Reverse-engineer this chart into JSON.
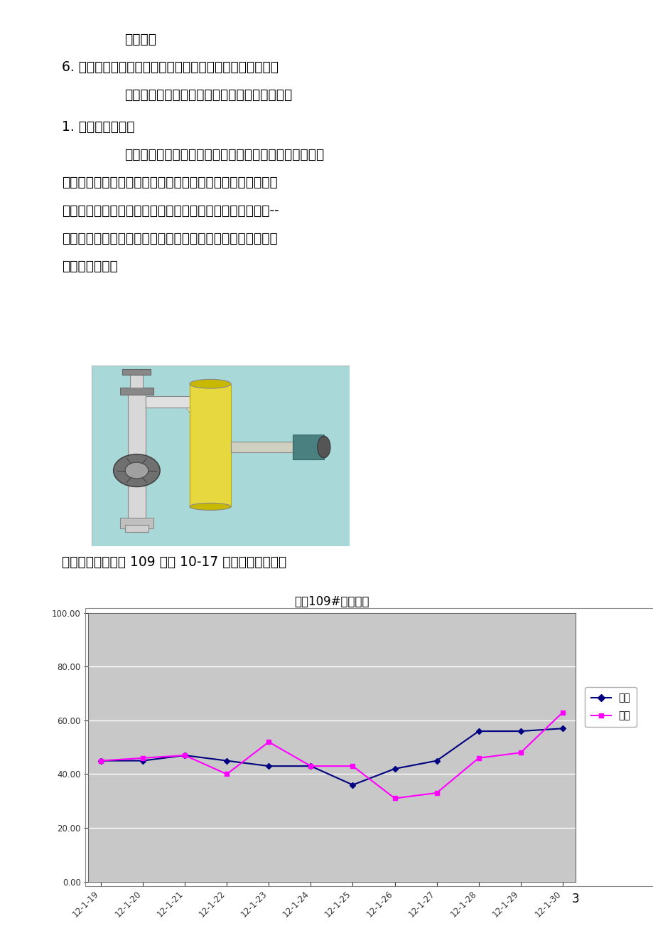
{
  "page_bg": "#ffffff",
  "text_color": "#000000",
  "page_width": 9.2,
  "page_height": 13.02,
  "chart_title": "西柳109#含水曲线",
  "x_labels": [
    "12-1-19",
    "12-1-20",
    "12-1-21",
    "12-1-22",
    "12-1-23",
    "12-1-24",
    "12-1-25",
    "12-1-26",
    "12-1-27",
    "12-1-28",
    "12-1-29",
    "12-1-30"
  ],
  "series_rengong": [
    45.0,
    45.0,
    47.0,
    45.0,
    43.0,
    43.0,
    36.0,
    42.0,
    45.0,
    56.0,
    56.0,
    57.0
  ],
  "series_celiang": [
    45.0,
    46.0,
    47.0,
    40.0,
    52.0,
    43.0,
    43.0,
    31.0,
    33.0,
    46.0,
    48.0,
    63.0
  ],
  "rengong_color": "#000080",
  "celiang_color": "#FF00FF",
  "chart_bg": "#C8C8C8",
  "plot_bg": "#C8C8C8",
  "ylim": [
    0,
    100
  ],
  "yticks": [
    0,
    20,
    40,
    60,
    80,
    100
  ],
  "ytick_labels": [
    "0.00",
    "20.00",
    "40.00",
    "60.00",
    "80.00",
    "100.00"
  ],
  "legend_rengong": "人工",
  "legend_celiang": "测量",
  "page_number": "3"
}
